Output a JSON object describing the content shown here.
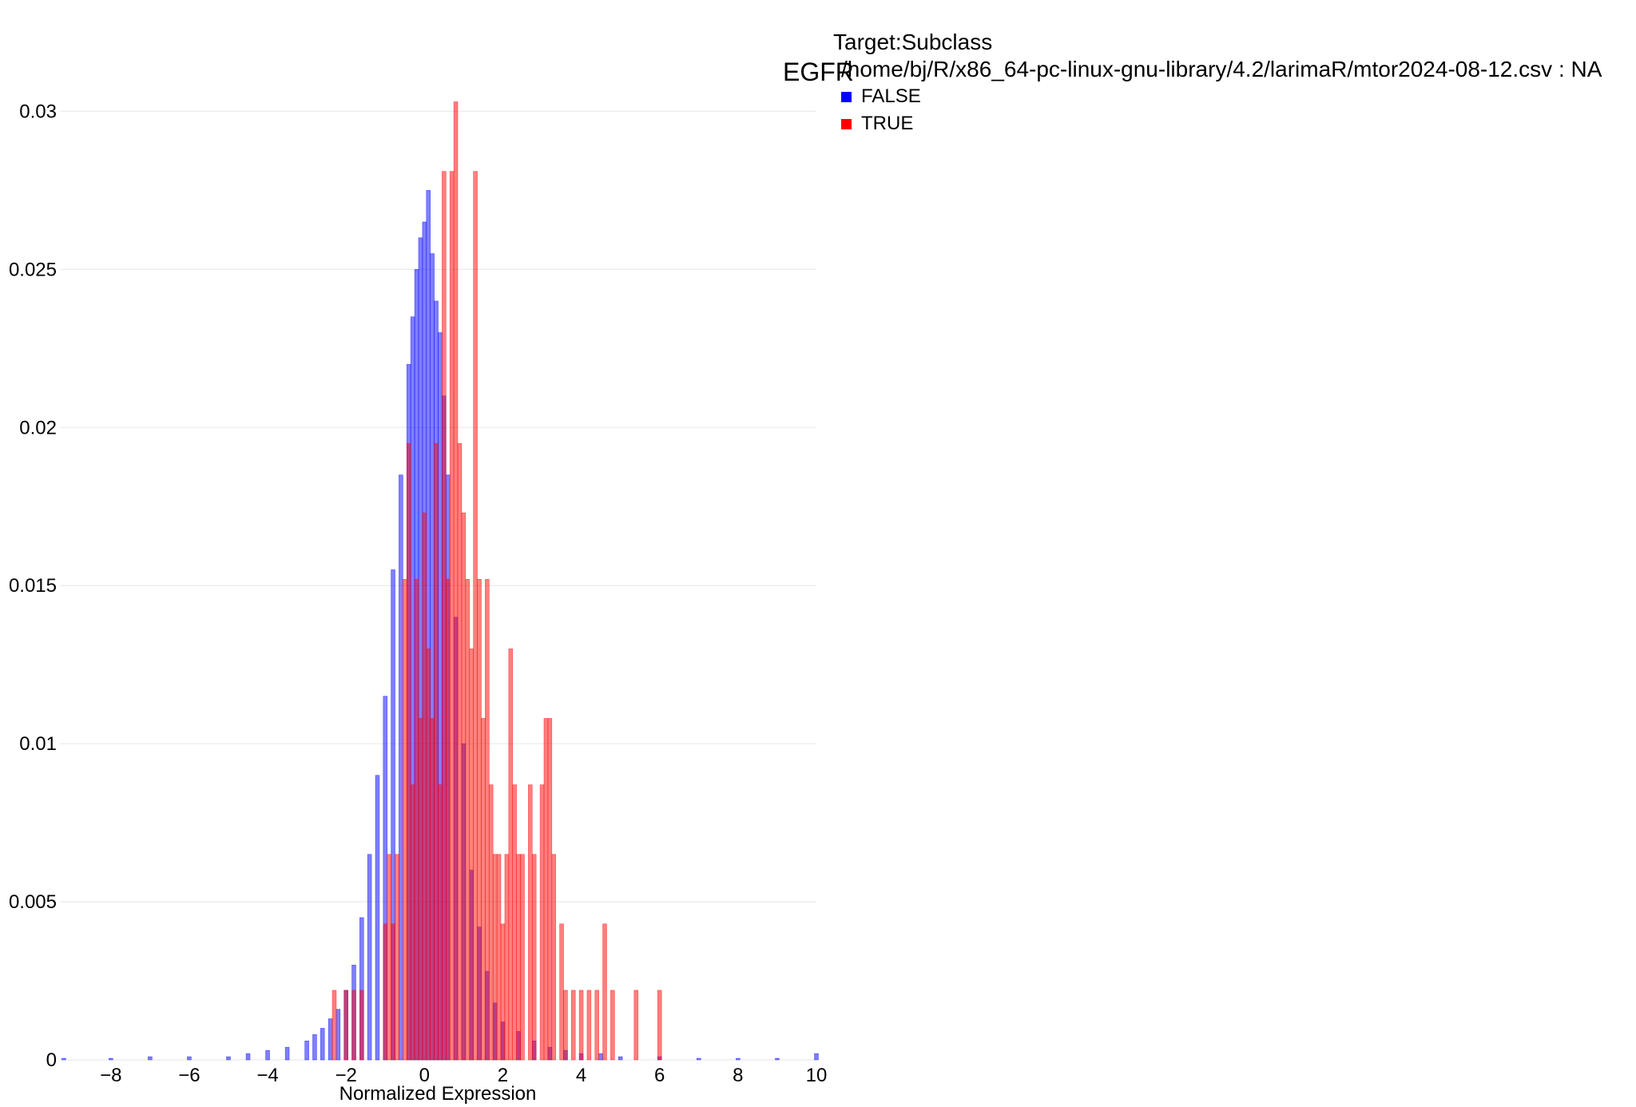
{
  "chart_data": {
    "type": "bar",
    "title": "EGFR",
    "xlabel": "Normalized Expression",
    "ylabel": "",
    "xlim": [
      -9.3,
      10
    ],
    "ylim": [
      0,
      0.0315
    ],
    "xticks": [
      -8,
      -6,
      -4,
      -2,
      0,
      2,
      4,
      6,
      8,
      10
    ],
    "xtick_labels": [
      "−8",
      "−6",
      "−4",
      "−2",
      "0",
      "2",
      "4",
      "6",
      "8",
      "10"
    ],
    "yticks": [
      0,
      0.005,
      0.01,
      0.015,
      0.02,
      0.025,
      0.03
    ],
    "ytick_labels": [
      "0",
      "0.005",
      "0.01",
      "0.015",
      "0.02",
      "0.025",
      "0.03"
    ],
    "grid": true,
    "legend": {
      "title": "Target:Subclass",
      "subtitle": "/home/bj/R/x86_64-pc-linux-gnu-library/4.2/larimaR/mtor2024-08-12.csv : NA",
      "placement": "top-right"
    },
    "series": [
      {
        "name": "FALSE",
        "color": "#0000ff",
        "opacity": 0.5,
        "bin_width": 0.1,
        "x": [
          -9.2,
          -8.0,
          -7.0,
          -6.0,
          -5.0,
          -4.5,
          -4.0,
          -3.5,
          -3.0,
          -2.8,
          -2.6,
          -2.4,
          -2.2,
          -2.0,
          -1.8,
          -1.6,
          -1.4,
          -1.2,
          -1.0,
          -0.8,
          -0.6,
          -0.4,
          -0.3,
          -0.2,
          -0.1,
          0.0,
          0.1,
          0.2,
          0.3,
          0.4,
          0.5,
          0.6,
          0.8,
          1.0,
          1.2,
          1.4,
          1.6,
          1.8,
          2.0,
          2.4,
          2.8,
          3.2,
          3.6,
          4.0,
          4.5,
          5.0,
          6.0,
          7.0,
          8.0,
          9.0,
          10.0
        ],
        "values": [
          5e-05,
          5e-05,
          0.0001,
          0.0001,
          0.0001,
          0.0002,
          0.0003,
          0.0004,
          0.0006,
          0.0008,
          0.001,
          0.0013,
          0.0016,
          0.0022,
          0.003,
          0.0045,
          0.0065,
          0.009,
          0.0115,
          0.0155,
          0.0185,
          0.022,
          0.0235,
          0.025,
          0.026,
          0.0265,
          0.0275,
          0.0255,
          0.024,
          0.023,
          0.021,
          0.0185,
          0.014,
          0.01,
          0.006,
          0.0042,
          0.0028,
          0.0018,
          0.0012,
          0.0009,
          0.0006,
          0.0004,
          0.0003,
          0.0002,
          0.0002,
          0.0001,
          0.0001,
          5e-05,
          5e-05,
          5e-05,
          0.0002
        ]
      },
      {
        "name": "TRUE",
        "color": "#ff0000",
        "opacity": 0.5,
        "bin_width": 0.1,
        "x": [
          -2.3,
          -2.0,
          -1.8,
          -1.6,
          -1.0,
          -0.9,
          -0.8,
          -0.7,
          -0.5,
          -0.4,
          -0.3,
          -0.2,
          -0.1,
          0.0,
          0.1,
          0.2,
          0.3,
          0.4,
          0.5,
          0.6,
          0.7,
          0.8,
          0.9,
          1.0,
          1.1,
          1.2,
          1.3,
          1.4,
          1.5,
          1.6,
          1.7,
          1.8,
          1.9,
          2.0,
          2.1,
          2.2,
          2.3,
          2.4,
          2.5,
          2.7,
          2.8,
          3.0,
          3.1,
          3.2,
          3.3,
          3.5,
          3.6,
          3.8,
          4.0,
          4.2,
          4.4,
          4.6,
          4.8,
          5.4,
          6.0
        ],
        "values": [
          0.0022,
          0.0022,
          0.0022,
          0.0022,
          0.0043,
          0.0065,
          0.0043,
          0.0065,
          0.0152,
          0.0195,
          0.0087,
          0.0152,
          0.0108,
          0.0173,
          0.013,
          0.0108,
          0.0195,
          0.0087,
          0.0281,
          0.0152,
          0.0281,
          0.0303,
          0.0195,
          0.0173,
          0.0152,
          0.013,
          0.0281,
          0.0152,
          0.0108,
          0.0152,
          0.0087,
          0.0065,
          0.0065,
          0.0043,
          0.0065,
          0.013,
          0.0087,
          0.0065,
          0.0065,
          0.0087,
          0.0065,
          0.0087,
          0.0108,
          0.0108,
          0.0065,
          0.0043,
          0.0022,
          0.0022,
          0.0022,
          0.0022,
          0.0022,
          0.0043,
          0.0022,
          0.0022,
          0.0022
        ]
      }
    ]
  }
}
